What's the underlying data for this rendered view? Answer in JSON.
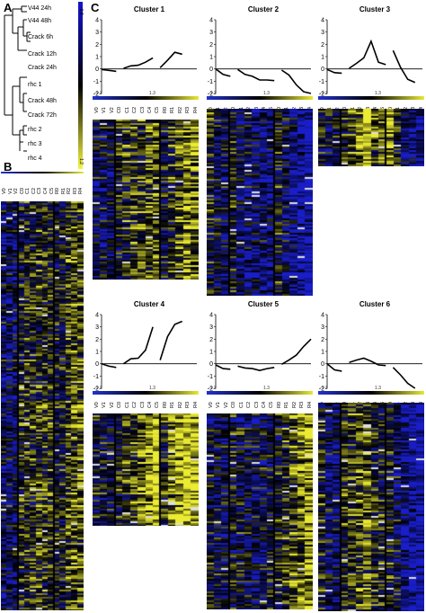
{
  "panels": {
    "a": "A",
    "b": "B",
    "c": "C"
  },
  "dendrogram": {
    "leaves": [
      "V44 24h",
      "V44 48h",
      "Crack 6h",
      "Crack 12h",
      "Crack 24h",
      "rhc 1",
      "Crack 48h",
      "Crack 72h",
      "rhc 2",
      "rhc 3",
      "rhc 4"
    ]
  },
  "colorbar_main": {
    "min_label": "-1.2",
    "max_label": "1.2",
    "low_color": "#1515d0",
    "mid_color": "#000000",
    "high_color": "#f5f542"
  },
  "columns": [
    "V0",
    "V1",
    "V2",
    "C0",
    "C1",
    "C2",
    "C3",
    "C4",
    "C5",
    "R0",
    "R1",
    "R2",
    "R3",
    "R4"
  ],
  "cluster_colorbar_labels": {
    "left": "-1.3",
    "right": "1.3"
  },
  "colors": {
    "low": "#1e2ab8",
    "mid": "#050505",
    "high": "#e8e83a",
    "accent_blue": "#2233cc"
  },
  "chart_data": [
    {
      "type": "line",
      "title": "Cluster 1",
      "ylim": [
        -2,
        4
      ],
      "yticks": [
        -2,
        -1,
        0,
        1,
        2,
        3,
        4
      ],
      "series": [
        {
          "segments": [
            [
              -0.05,
              -0.12,
              -0.2
            ],
            [
              0.05,
              0.25,
              0.3,
              0.55,
              0.9
            ],
            [
              0.1,
              0.7,
              1.35,
              1.2
            ]
          ]
        }
      ]
    },
    {
      "type": "line",
      "title": "Cluster 2",
      "ylim": [
        -2,
        4
      ],
      "yticks": [
        -2,
        -1,
        0,
        1,
        2,
        3,
        4
      ],
      "series": [
        {
          "segments": [
            [
              0.0,
              -0.45,
              -0.6
            ],
            [
              -0.05,
              -0.45,
              -0.6,
              -0.9,
              -0.9,
              -0.95
            ],
            [
              -0.1,
              -0.5,
              -1.3,
              -1.85,
              -2.0
            ]
          ]
        }
      ]
    },
    {
      "type": "line",
      "title": "Cluster 3",
      "ylim": [
        -2,
        4
      ],
      "yticks": [
        -2,
        -1,
        0,
        1,
        2,
        3,
        4
      ],
      "series": [
        {
          "segments": [
            [
              -0.05,
              -0.3,
              -0.35
            ],
            [
              0.05,
              0.45,
              0.9,
              2.25,
              0.55,
              0.35
            ],
            [
              1.5,
              0.15,
              -0.85,
              -1.1
            ]
          ]
        }
      ]
    },
    {
      "type": "line",
      "title": "Cluster 4",
      "ylim": [
        -2,
        4
      ],
      "yticks": [
        -2,
        -1,
        0,
        1,
        2,
        3,
        4
      ],
      "series": [
        {
          "segments": [
            [
              0.0,
              -0.2,
              -0.3
            ],
            [
              0.0,
              0.4,
              0.45,
              1.1,
              3.0
            ],
            [
              0.3,
              2.2,
              3.2,
              3.45
            ]
          ]
        }
      ]
    },
    {
      "type": "line",
      "title": "Cluster 5",
      "ylim": [
        -2,
        4
      ],
      "yticks": [
        -2,
        -1,
        0,
        1,
        2,
        3,
        4
      ],
      "series": [
        {
          "segments": [
            [
              -0.1,
              -0.4,
              -0.45
            ],
            [
              -0.2,
              -0.35,
              -0.4,
              -0.55,
              -0.4,
              -0.3
            ],
            [
              -0.05,
              0.3,
              0.7,
              1.4,
              2.0
            ]
          ]
        }
      ]
    },
    {
      "type": "line",
      "title": "Cluster 6",
      "ylim": [
        -2,
        4
      ],
      "yticks": [
        -2,
        -1,
        0,
        1,
        2,
        3,
        4
      ],
      "series": [
        {
          "segments": [
            [
              0.0,
              -0.5,
              -0.6
            ],
            [
              0.1,
              0.3,
              0.45,
              0.2,
              -0.1,
              -0.15
            ],
            [
              -0.3,
              -0.9,
              -1.6,
              -2.0
            ]
          ]
        }
      ]
    }
  ]
}
